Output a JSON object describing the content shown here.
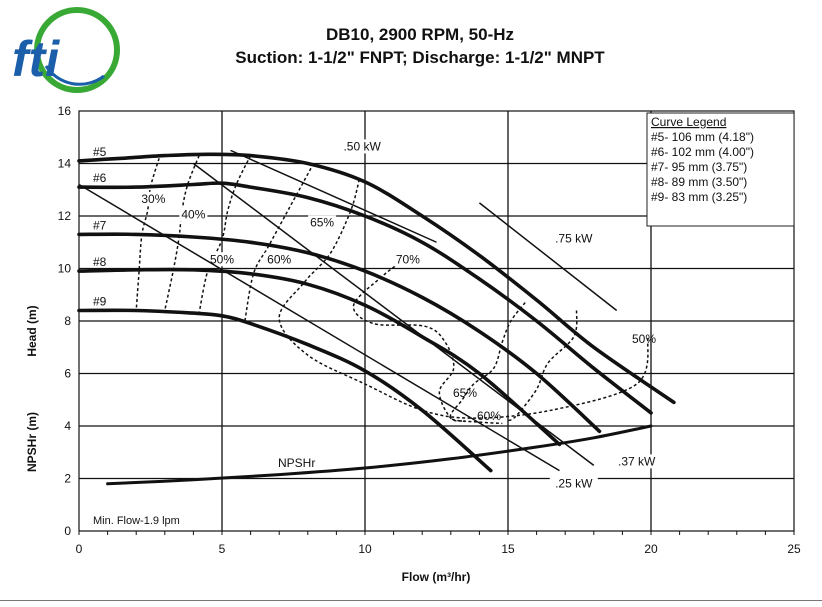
{
  "brand": {
    "logo_text": "fti",
    "colors": {
      "green": "#39a935",
      "blue": "#1b5fab"
    }
  },
  "chart_data": {
    "type": "line",
    "title": "DB10, 2900 RPM, 50-Hz",
    "subtitle": "Suction: 1-1/2\" FNPT; Discharge: 1-1/2\" MNPT",
    "xlabel": "Flow (m³/hr)",
    "ylabel_head": "Head (m)",
    "ylabel_npsh": "NPSHr (m)",
    "xlim": [
      0,
      25
    ],
    "ylim": [
      0,
      16
    ],
    "x_ticks": [
      "0",
      "5",
      "10",
      "15",
      "20",
      "25"
    ],
    "y_ticks": [
      "0",
      "2",
      "4",
      "6",
      "8",
      "10",
      "12",
      "14",
      "16"
    ],
    "grid": true,
    "legend_position": "top-right",
    "legend": {
      "title": "Curve Legend",
      "entries": [
        "#5- 106 mm (4.18\")",
        "#6- 102 mm (4.00\")",
        "#7- 95 mm (3.75\")",
        "#8- 89 mm (3.50\")",
        "#9- 83 mm (3.25\")"
      ]
    },
    "series": [
      {
        "name": "#5",
        "x": [
          0,
          1.5,
          3,
          4.5,
          6,
          8,
          10,
          12,
          14,
          16,
          18,
          20.8
        ],
        "y": [
          14.1,
          14.2,
          14.3,
          14.35,
          14.3,
          14.0,
          13.3,
          12.0,
          10.5,
          8.8,
          7.0,
          4.9
        ]
      },
      {
        "name": "#6",
        "x": [
          0,
          2,
          4,
          5,
          6,
          8,
          10,
          12,
          14,
          16,
          18,
          20
        ],
        "y": [
          13.1,
          13.1,
          13.2,
          13.25,
          13.1,
          12.7,
          12.0,
          11.0,
          9.6,
          8.0,
          6.2,
          4.5
        ]
      },
      {
        "name": "#7",
        "x": [
          0,
          2,
          4,
          6,
          8,
          10,
          12,
          14,
          16,
          18.2
        ],
        "y": [
          11.3,
          11.3,
          11.2,
          11.0,
          10.6,
          9.9,
          8.9,
          7.6,
          6.0,
          3.8
        ]
      },
      {
        "name": "#8",
        "x": [
          0,
          2,
          4,
          6,
          8,
          10,
          12,
          14,
          16.8
        ],
        "y": [
          9.9,
          9.95,
          9.95,
          9.8,
          9.4,
          8.6,
          7.4,
          6.0,
          3.3
        ]
      },
      {
        "name": "#9",
        "x": [
          0,
          2,
          4,
          5,
          6,
          8,
          10,
          12,
          14.4
        ],
        "y": [
          8.4,
          8.4,
          8.3,
          8.2,
          7.9,
          7.1,
          6.1,
          4.6,
          2.3
        ]
      },
      {
        "name": "NPSHr",
        "x": [
          1,
          4,
          7,
          10,
          13,
          16,
          18,
          20
        ],
        "y": [
          1.8,
          1.95,
          2.15,
          2.4,
          2.75,
          3.2,
          3.55,
          4.0
        ]
      }
    ],
    "power_lines": [
      {
        "label": ".50 kW",
        "x": [
          5.3,
          12.5
        ],
        "y": [
          14.5,
          11.0
        ]
      },
      {
        "label": ".75 kW",
        "x": [
          14.0,
          18.8
        ],
        "y": [
          12.5,
          8.4
        ]
      },
      {
        "label": ".37 kW",
        "x": [
          4.0,
          18.0
        ],
        "y": [
          14.0,
          2.5
        ]
      },
      {
        "label": ".25 kW",
        "x": [
          0.0,
          16.8
        ],
        "y": [
          13.2,
          2.3
        ]
      }
    ],
    "efficiency_contours": [
      {
        "label": "30%",
        "x": [
          2.8,
          2.5,
          2.4,
          2.2,
          2.1,
          2.0
        ],
        "y": [
          14.2,
          13.1,
          12.2,
          11.3,
          9.9,
          8.4
        ]
      },
      {
        "label": "40%",
        "x": [
          4.2,
          3.8,
          3.6,
          3.5,
          3.3,
          3.0
        ],
        "y": [
          14.3,
          13.2,
          12.2,
          11.2,
          9.95,
          8.4
        ]
      },
      {
        "label": "50%",
        "x": [
          6.0,
          5.5,
          5.2,
          5.0,
          4.5,
          4.2
        ],
        "y": [
          14.3,
          13.2,
          12.2,
          11.1,
          9.9,
          8.3
        ]
      },
      {
        "label": "60%",
        "x": [
          8.2,
          7.6,
          7.1,
          6.6,
          6.1,
          5.8
        ],
        "y": [
          14.0,
          12.8,
          11.8,
          10.8,
          9.8,
          8.0
        ]
      },
      {
        "label": "65%",
        "x": [
          9.8,
          9.5,
          8.8,
          7.9,
          7.0,
          8.0,
          10.0,
          12.0,
          13.8,
          16.5,
          19.5,
          19.9
        ],
        "y": [
          13.4,
          12.2,
          10.6,
          9.5,
          8.1,
          6.7,
          5.6,
          4.6,
          4.3,
          4.6,
          5.6,
          7.4
        ]
      },
      {
        "label": "70%",
        "x": [
          11.2,
          10.6,
          9.6,
          10.3,
          12.1,
          12.8,
          13.1,
          12.6,
          13.0,
          13.5
        ],
        "y": [
          10.2,
          9.7,
          8.6,
          7.9,
          7.8,
          7.2,
          6.2,
          5.3,
          4.3,
          4.2
        ]
      },
      {
        "label": "65%",
        "x": [
          15.6,
          15.1,
          14.8,
          14.5,
          13.8,
          13.4,
          13.0,
          14.0,
          14.8
        ],
        "y": [
          8.7,
          8.0,
          7.2,
          6.2,
          5.6,
          5.0,
          4.3,
          4.15,
          4.1
        ]
      },
      {
        "label": "60%",
        "x": [
          17.4,
          17.3,
          16.4,
          16.0,
          15.3,
          15.0
        ],
        "y": [
          8.4,
          7.4,
          6.4,
          5.4,
          4.4,
          4.2
        ]
      }
    ],
    "annotations": [
      "Min. Flow-1.9 lpm",
      "NPSHr",
      "50%",
      "65%",
      "60%"
    ]
  }
}
